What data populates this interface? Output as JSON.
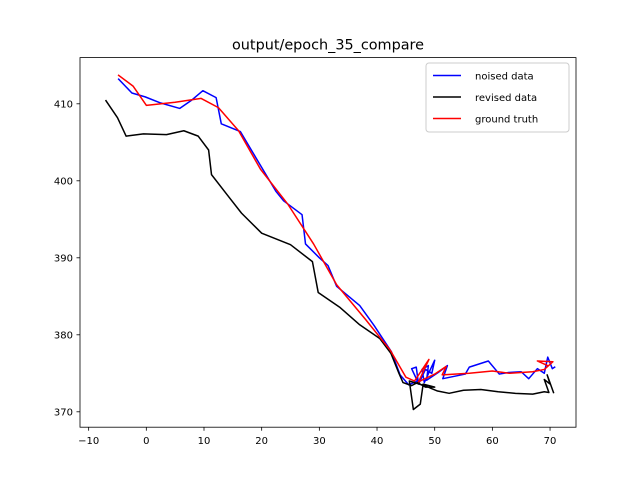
{
  "chart_data": {
    "type": "line",
    "title": "output/epoch_35_compare",
    "xlabel": "",
    "ylabel": "",
    "xlim": [
      -11.5,
      74.5
    ],
    "ylim": [
      368.0,
      416.0
    ],
    "xticks": [
      -10,
      0,
      10,
      20,
      30,
      40,
      50,
      60,
      70
    ],
    "xtick_labels": [
      "−10",
      "0",
      "10",
      "20",
      "30",
      "40",
      "50",
      "60",
      "70"
    ],
    "yticks": [
      370,
      380,
      390,
      400,
      410
    ],
    "ytick_labels": [
      "370",
      "380",
      "390",
      "400",
      "410"
    ],
    "grid": false,
    "legend_position": "top-right",
    "series": [
      {
        "name": "noised data",
        "color": "#0000ff",
        "points": [
          [
            -4.8,
            413.2
          ],
          [
            -2.5,
            411.4
          ],
          [
            -0.2,
            410.9
          ],
          [
            2.5,
            410.1
          ],
          [
            5.8,
            409.4
          ],
          [
            7.9,
            410.5
          ],
          [
            9.8,
            411.7
          ],
          [
            12.1,
            410.8
          ],
          [
            13.0,
            407.4
          ],
          [
            16.3,
            406.4
          ],
          [
            19.0,
            403.0
          ],
          [
            22.5,
            398.6
          ],
          [
            23.8,
            397.4
          ],
          [
            27.0,
            395.6
          ],
          [
            27.6,
            391.8
          ],
          [
            30.0,
            390.0
          ],
          [
            31.5,
            389.0
          ],
          [
            33.0,
            386.3
          ],
          [
            37.0,
            383.8
          ],
          [
            39.5,
            381.2
          ],
          [
            42.5,
            377.8
          ],
          [
            44.0,
            374.8
          ],
          [
            45.5,
            373.5
          ],
          [
            47.0,
            374.0
          ],
          [
            46.0,
            375.6
          ],
          [
            46.8,
            375.8
          ],
          [
            47.2,
            373.6
          ],
          [
            48.4,
            375.5
          ],
          [
            49.5,
            375.0
          ],
          [
            50.0,
            376.7
          ],
          [
            48.2,
            373.8
          ],
          [
            47.8,
            375.5
          ],
          [
            48.9,
            376.0
          ],
          [
            48.6,
            374.1
          ],
          [
            50.6,
            375.1
          ],
          [
            52.2,
            376.0
          ],
          [
            51.4,
            374.3
          ],
          [
            55.3,
            374.9
          ],
          [
            56.0,
            375.8
          ],
          [
            59.3,
            376.6
          ],
          [
            61.2,
            374.9
          ],
          [
            62.8,
            375.1
          ],
          [
            65.0,
            375.2
          ],
          [
            66.3,
            374.3
          ],
          [
            67.8,
            375.6
          ],
          [
            69.0,
            375.0
          ],
          [
            69.6,
            377.1
          ],
          [
            70.4,
            375.6
          ],
          [
            70.8,
            375.8
          ]
        ]
      },
      {
        "name": "revised data",
        "color": "#000000",
        "points": [
          [
            -7.0,
            410.4
          ],
          [
            -5.0,
            408.2
          ],
          [
            -3.5,
            405.8
          ],
          [
            -0.5,
            406.1
          ],
          [
            3.5,
            406.0
          ],
          [
            6.5,
            406.5
          ],
          [
            9.0,
            405.8
          ],
          [
            10.8,
            404.0
          ],
          [
            11.3,
            400.8
          ],
          [
            14.0,
            398.2
          ],
          [
            16.5,
            395.8
          ],
          [
            20.0,
            393.2
          ],
          [
            25.0,
            391.7
          ],
          [
            28.8,
            389.5
          ],
          [
            29.8,
            385.5
          ],
          [
            33.5,
            383.6
          ],
          [
            37.0,
            381.3
          ],
          [
            40.5,
            379.5
          ],
          [
            42.4,
            377.6
          ],
          [
            43.8,
            375.0
          ],
          [
            44.5,
            373.8
          ],
          [
            46.0,
            373.4
          ],
          [
            47.0,
            373.8
          ],
          [
            48.4,
            373.2
          ],
          [
            50.0,
            373.2
          ],
          [
            48.0,
            373.6
          ],
          [
            47.5,
            371.0
          ],
          [
            46.3,
            370.3
          ],
          [
            45.6,
            374.0
          ],
          [
            48.6,
            373.3
          ],
          [
            49.5,
            373.0
          ],
          [
            50.5,
            372.7
          ],
          [
            52.5,
            372.4
          ],
          [
            55.0,
            372.8
          ],
          [
            58.0,
            372.9
          ],
          [
            61.0,
            372.6
          ],
          [
            64.0,
            372.4
          ],
          [
            67.0,
            372.3
          ],
          [
            69.0,
            372.6
          ],
          [
            69.8,
            372.5
          ],
          [
            69.0,
            374.2
          ],
          [
            70.0,
            373.6
          ],
          [
            69.5,
            374.8
          ],
          [
            70.6,
            372.5
          ]
        ]
      },
      {
        "name": "ground truth",
        "color": "#ff0000",
        "points": [
          [
            -4.8,
            413.7
          ],
          [
            -2.3,
            412.3
          ],
          [
            0.0,
            409.8
          ],
          [
            5.0,
            410.2
          ],
          [
            9.5,
            410.7
          ],
          [
            12.5,
            409.5
          ],
          [
            16.0,
            406.5
          ],
          [
            19.8,
            401.5
          ],
          [
            24.5,
            397.0
          ],
          [
            29.0,
            391.8
          ],
          [
            33.0,
            386.5
          ],
          [
            38.0,
            382.0
          ],
          [
            42.3,
            378.0
          ],
          [
            45.0,
            374.5
          ],
          [
            46.5,
            374.0
          ],
          [
            49.0,
            376.8
          ],
          [
            47.2,
            373.9
          ],
          [
            50.0,
            374.9
          ],
          [
            52.0,
            375.9
          ],
          [
            51.3,
            374.8
          ],
          [
            56.0,
            375.0
          ],
          [
            60.0,
            375.3
          ],
          [
            63.0,
            375.0
          ],
          [
            67.0,
            375.2
          ],
          [
            69.0,
            375.5
          ],
          [
            70.5,
            376.5
          ],
          [
            67.8,
            376.6
          ],
          [
            69.6,
            376.0
          ]
        ]
      }
    ]
  }
}
